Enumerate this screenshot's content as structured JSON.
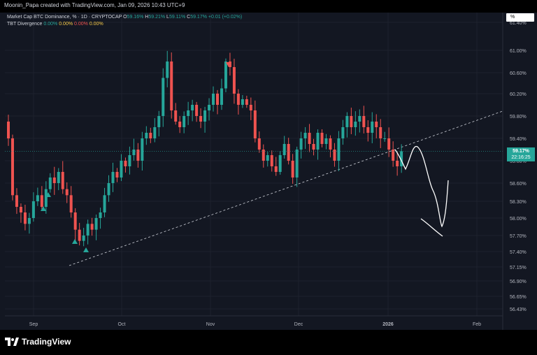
{
  "header": {
    "credit": "Moonin_Papa created with TradingView.com, Jan 09, 2026 10:43 UTC+9"
  },
  "legend": {
    "symbol": "Market Cap BTC Dominance, % · 1D · CRYPTOCAP",
    "o_label": "O",
    "o_value": "59.16%",
    "h_label": "H",
    "h_value": "59.21%",
    "l_label": "L",
    "l_value": "59.11%",
    "c_label": "C",
    "c_value": "59.17%",
    "change": "+0.01 (+0.02%)",
    "indicator_name": "TBT Divergence",
    "indicator_values": [
      "0.00%",
      "0.00%",
      "0.00%",
      "0.00%"
    ]
  },
  "percent_button": "%",
  "price_tag": {
    "price": "59.17%",
    "countdown": "22:16:25"
  },
  "brand": "TradingView",
  "colors": {
    "up": "#26a69a",
    "down": "#ef5350",
    "background": "#131722",
    "accent_yellow": "#f7c948"
  },
  "chart_data": {
    "type": "candlestick",
    "symbol": "Market Cap BTC Dominance, %",
    "interval": "1D",
    "yaxis_ticks": [
      "61.40%",
      "61.00%",
      "60.60%",
      "60.20%",
      "59.80%",
      "59.40%",
      "59.00%",
      "58.60%",
      "58.30%",
      "58.00%",
      "57.70%",
      "57.40%",
      "57.15%",
      "56.90%",
      "56.65%",
      "56.43%"
    ],
    "xaxis_ticks": [
      "Sep",
      "Oct",
      "Nov",
      "Dec",
      "2026",
      "Feb"
    ],
    "ylim": [
      56.3,
      61.6
    ],
    "last_price": 59.17,
    "candles_close": [
      59.4,
      58.4,
      58.2,
      58.1,
      57.9,
      58.0,
      58.3,
      58.4,
      58.2,
      58.5,
      58.7,
      58.6,
      58.8,
      58.5,
      58.4,
      58.1,
      57.8,
      57.6,
      57.7,
      57.9,
      57.8,
      58.0,
      58.1,
      58.4,
      58.6,
      58.8,
      58.7,
      59.0,
      58.9,
      59.1,
      59.2,
      59.0,
      59.4,
      59.5,
      59.4,
      59.6,
      59.8,
      60.5,
      60.8,
      59.9,
      59.7,
      59.6,
      59.8,
      59.9,
      60.0,
      59.8,
      59.7,
      59.9,
      60.0,
      60.2,
      60.0,
      60.3,
      60.8,
      60.7,
      60.2,
      60.0,
      60.1,
      60.0,
      59.9,
      59.4,
      59.2,
      59.0,
      59.1,
      58.9,
      58.8,
      59.1,
      59.3,
      59.0,
      58.7,
      59.2,
      59.4,
      59.5,
      59.3,
      59.2,
      59.5,
      59.3,
      59.4,
      59.2,
      59.0,
      59.4,
      59.6,
      59.8,
      59.6,
      59.7,
      59.8,
      59.6,
      59.5,
      59.7,
      59.6,
      59.4,
      59.4,
      59.2,
      59.0,
      58.9,
      59.17
    ]
  }
}
